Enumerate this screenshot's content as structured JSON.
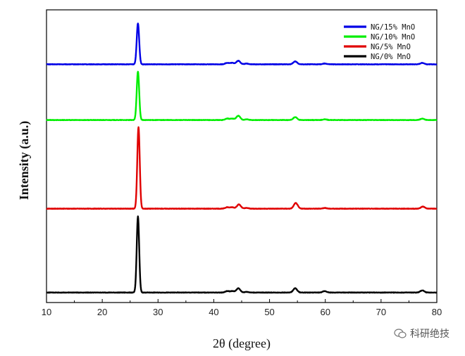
{
  "chart_data": {
    "type": "line",
    "xlabel": "2θ (degree)",
    "ylabel": "Intensity (a.u.)",
    "xlim": [
      10,
      80
    ],
    "xticks": [
      10,
      20,
      30,
      40,
      50,
      60,
      70,
      80
    ],
    "y_ticks_shown": false,
    "grid": false,
    "legend_position": "top-right",
    "peak_positions_2theta": [
      26.4,
      42.4,
      44.4,
      54.6,
      59.9,
      77.4
    ],
    "series": [
      {
        "name": "NG/15% MnO",
        "color": "#0000e6",
        "baseline": 3,
        "peaks": [
          [
            26.4,
            58
          ],
          [
            42.4,
            2
          ],
          [
            43.3,
            2
          ],
          [
            44.4,
            5
          ],
          [
            45.9,
            1
          ],
          [
            54.6,
            4
          ],
          [
            59.9,
            1
          ],
          [
            77.4,
            2
          ]
        ]
      },
      {
        "name": "NG/10% MnO",
        "color": "#00ee00",
        "baseline": 2,
        "peaks": [
          [
            26.4,
            69
          ],
          [
            42.4,
            2
          ],
          [
            43.3,
            2
          ],
          [
            44.4,
            6
          ],
          [
            45.9,
            1
          ],
          [
            54.6,
            4
          ],
          [
            59.9,
            1
          ],
          [
            77.4,
            2
          ]
        ]
      },
      {
        "name": "NG/5% MnO",
        "color": "#e00000",
        "baseline": 2,
        "peaks": [
          [
            26.5,
            116
          ],
          [
            42.4,
            2
          ],
          [
            43.3,
            2
          ],
          [
            44.5,
            6
          ],
          [
            45.9,
            1
          ],
          [
            54.7,
            8
          ],
          [
            59.9,
            1
          ],
          [
            77.5,
            3
          ]
        ]
      },
      {
        "name": "NG/0% MnO",
        "color": "#000000",
        "baseline": 1,
        "peaks": [
          [
            26.4,
            108
          ],
          [
            42.4,
            2
          ],
          [
            43.3,
            2
          ],
          [
            44.4,
            6
          ],
          [
            45.9,
            1
          ],
          [
            54.6,
            6
          ],
          [
            59.9,
            2
          ],
          [
            77.4,
            3
          ]
        ]
      }
    ]
  },
  "watermark": {
    "text": "科研绝技",
    "icon": "wechat-icon"
  }
}
